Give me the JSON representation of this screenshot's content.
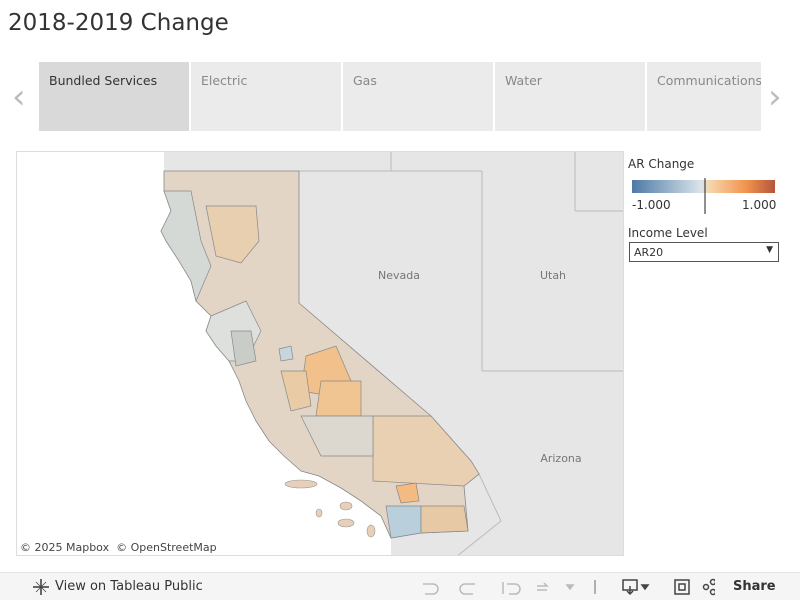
{
  "header": {
    "title": "2018-2019 Change"
  },
  "tabs": [
    "Bundled Services",
    "Electric",
    "Gas",
    "Water",
    "Communications"
  ],
  "map": {
    "labels": [
      "Nevada",
      "Utah",
      "Arizona"
    ],
    "attribution": [
      "© 2025 Mapbox",
      "© OpenStreetMap"
    ]
  },
  "legend": {
    "title": "AR Change",
    "min_label": "-1.000",
    "max_label": "1.000"
  },
  "filter": {
    "title": "Income Level",
    "selected": "AR20"
  },
  "footer": {
    "view_link": "View on Tableau Public",
    "share": "Share"
  }
}
